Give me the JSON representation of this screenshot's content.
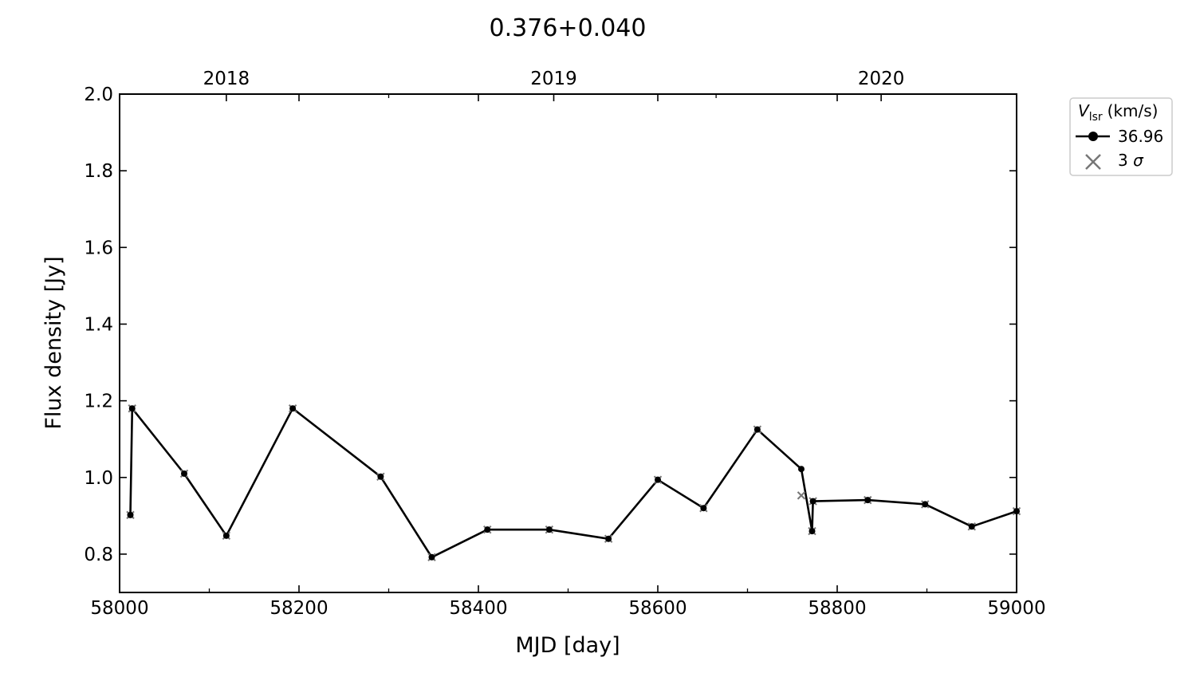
{
  "chart_data": {
    "type": "line",
    "title": "0.376+0.040",
    "xlabel": "MJD [day]",
    "ylabel": "Flux density [Jy]",
    "xlim": [
      58000,
      59000
    ],
    "ylim": [
      0.7,
      2.0
    ],
    "x_ticks": [
      58000,
      58200,
      58400,
      58600,
      58800,
      59000
    ],
    "x_minor_ticks": [
      58100,
      58300,
      58500,
      58700,
      58900
    ],
    "y_ticks": [
      0.8,
      1.0,
      1.2,
      1.4,
      1.6,
      1.8,
      2.0
    ],
    "top_axis": {
      "labels": [
        "2018",
        "2019",
        "2020"
      ],
      "positions_mjd": [
        58119,
        58484,
        58849
      ],
      "minor_ticks_mjd": [
        58300,
        58665
      ]
    },
    "grid": false,
    "legend": {
      "placement": "outside-right-top",
      "title_main": "V",
      "title_sub": "lsr",
      "title_unit": "(km/s)",
      "entries": [
        {
          "label_main": "36.96",
          "label_sub": "",
          "marker": "line-dot"
        },
        {
          "label_main": "3 ",
          "label_sub": "σ",
          "marker": "x"
        }
      ]
    },
    "series": [
      {
        "name": "36.96",
        "color": "#000000",
        "x": [
          58012,
          58014,
          58072,
          58119,
          58193,
          58291,
          58348,
          58410,
          58479,
          58545,
          58600,
          58651,
          58711,
          58760,
          58772,
          58773,
          58834,
          58898,
          58950,
          59000
        ],
        "y": [
          0.902,
          1.18,
          1.01,
          0.848,
          1.18,
          1.002,
          0.792,
          0.864,
          0.864,
          0.84,
          0.994,
          0.92,
          1.125,
          1.022,
          0.86,
          0.938,
          0.941,
          0.93,
          0.872,
          0.912
        ]
      }
    ],
    "sigma3": {
      "color": "#777777",
      "x": [
        58012,
        58014,
        58072,
        58119,
        58193,
        58291,
        58348,
        58410,
        58479,
        58545,
        58600,
        58651,
        58711,
        58760,
        58772,
        58773,
        58834,
        58898,
        58950,
        59000
      ],
      "y": [
        0.902,
        1.18,
        1.01,
        0.848,
        1.18,
        1.002,
        0.792,
        0.864,
        0.864,
        0.84,
        0.994,
        0.92,
        1.125,
        0.953,
        0.86,
        0.938,
        0.941,
        0.93,
        0.872,
        0.912
      ]
    }
  }
}
